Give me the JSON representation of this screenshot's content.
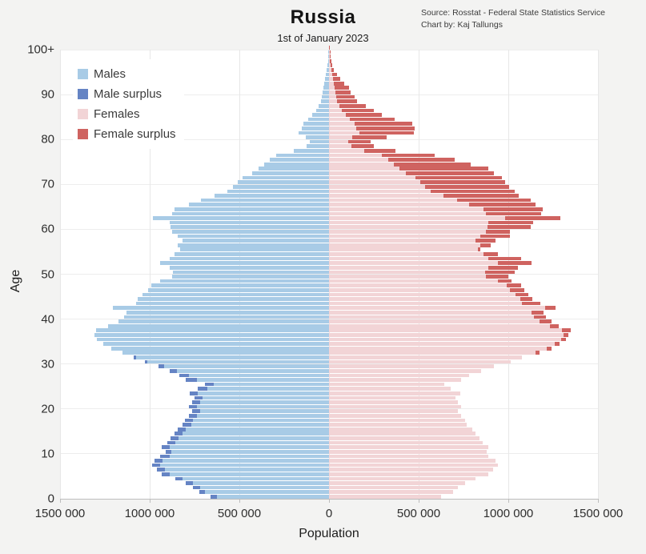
{
  "title": "Russia",
  "subtitle": "1st of January 2023",
  "source_line1": "Source: Rosstat - Federal State Statistics Service",
  "source_line2": "Chart by: Kaj Tallungs",
  "colors": {
    "males": "#a8cbe6",
    "male_surplus": "#6584c4",
    "females": "#f2d4d6",
    "female_surplus": "#cf6360",
    "plot_background": "#ffffff",
    "figure_background": "#f3f3f2"
  },
  "legend": [
    {
      "label": "Males",
      "color_key": "males"
    },
    {
      "label": "Male surplus",
      "color_key": "male_surplus"
    },
    {
      "label": "Females",
      "color_key": "females"
    },
    {
      "label": "Female surplus",
      "color_key": "female_surplus"
    }
  ],
  "chart_data": {
    "type": "bar",
    "variant": "population-pyramid",
    "title": "Russia",
    "subtitle": "1st of January 2023",
    "xlabel": "Population",
    "ylabel": "Age",
    "units": "persons, values given in thousands per single year of age",
    "xlim": [
      -1500000,
      1500000
    ],
    "x_tick_values": [
      -1500000,
      -1000000,
      -500000,
      0,
      500000,
      1000000,
      1500000
    ],
    "x_tick_labels": [
      "1500 000",
      "1000 000",
      "500 000",
      "0",
      "500 000",
      "1000 000",
      "1500 000"
    ],
    "y_tick_values": [
      0,
      10,
      20,
      30,
      40,
      50,
      60,
      70,
      80,
      90,
      100
    ],
    "y_tick_labels": [
      "0",
      "10",
      "20",
      "30",
      "40",
      "50",
      "60",
      "70",
      "80",
      "90",
      "100+"
    ],
    "grid": true,
    "legend_position": "top-left",
    "ages": "0-100 (single years, 100 = 100+)",
    "series": [
      {
        "name": "Males",
        "side": "left",
        "values_thousands": [
          660,
          725,
          760,
          800,
          855,
          935,
          960,
          985,
          975,
          940,
          910,
          935,
          900,
          885,
          860,
          845,
          815,
          805,
          780,
          765,
          780,
          765,
          750,
          775,
          730,
          690,
          800,
          835,
          890,
          950,
          1025,
          1090,
          1150,
          1215,
          1260,
          1295,
          1310,
          1300,
          1230,
          1175,
          1145,
          1130,
          1205,
          1075,
          1065,
          1040,
          1010,
          990,
          940,
          875,
          870,
          890,
          940,
          890,
          860,
          830,
          845,
          815,
          845,
          875,
          885,
          890,
          980,
          875,
          860,
          780,
          715,
          640,
          565,
          535,
          510,
          480,
          430,
          395,
          360,
          330,
          295,
          195,
          125,
          105,
          130,
          170,
          152,
          143,
          116,
          94,
          71,
          58,
          45,
          40,
          36,
          31,
          27,
          22,
          18,
          13,
          9,
          6,
          4,
          3,
          2
        ]
      },
      {
        "name": "Females",
        "side": "right",
        "values_thousands": [
          625,
          690,
          720,
          760,
          815,
          890,
          915,
          940,
          930,
          890,
          880,
          890,
          855,
          840,
          815,
          800,
          770,
          760,
          735,
          720,
          735,
          720,
          705,
          730,
          680,
          645,
          735,
          780,
          850,
          920,
          1015,
          1075,
          1175,
          1240,
          1285,
          1320,
          1335,
          1350,
          1280,
          1240,
          1210,
          1195,
          1265,
          1180,
          1135,
          1110,
          1090,
          1070,
          1020,
          1000,
          1035,
          1055,
          1130,
          1070,
          940,
          845,
          900,
          930,
          1010,
          1010,
          1125,
          1140,
          1290,
          1185,
          1190,
          1150,
          1125,
          1060,
          1035,
          1005,
          980,
          965,
          920,
          890,
          790,
          700,
          590,
          370,
          250,
          230,
          320,
          475,
          478,
          464,
          366,
          295,
          250,
          205,
          156,
          143,
          121,
          112,
          85,
          62,
          45,
          27,
          18,
          13,
          9,
          6,
          5
        ]
      }
    ],
    "notes": "Dark blue segment = male surplus (males minus females); dark red segment = female surplus (females minus males)."
  }
}
